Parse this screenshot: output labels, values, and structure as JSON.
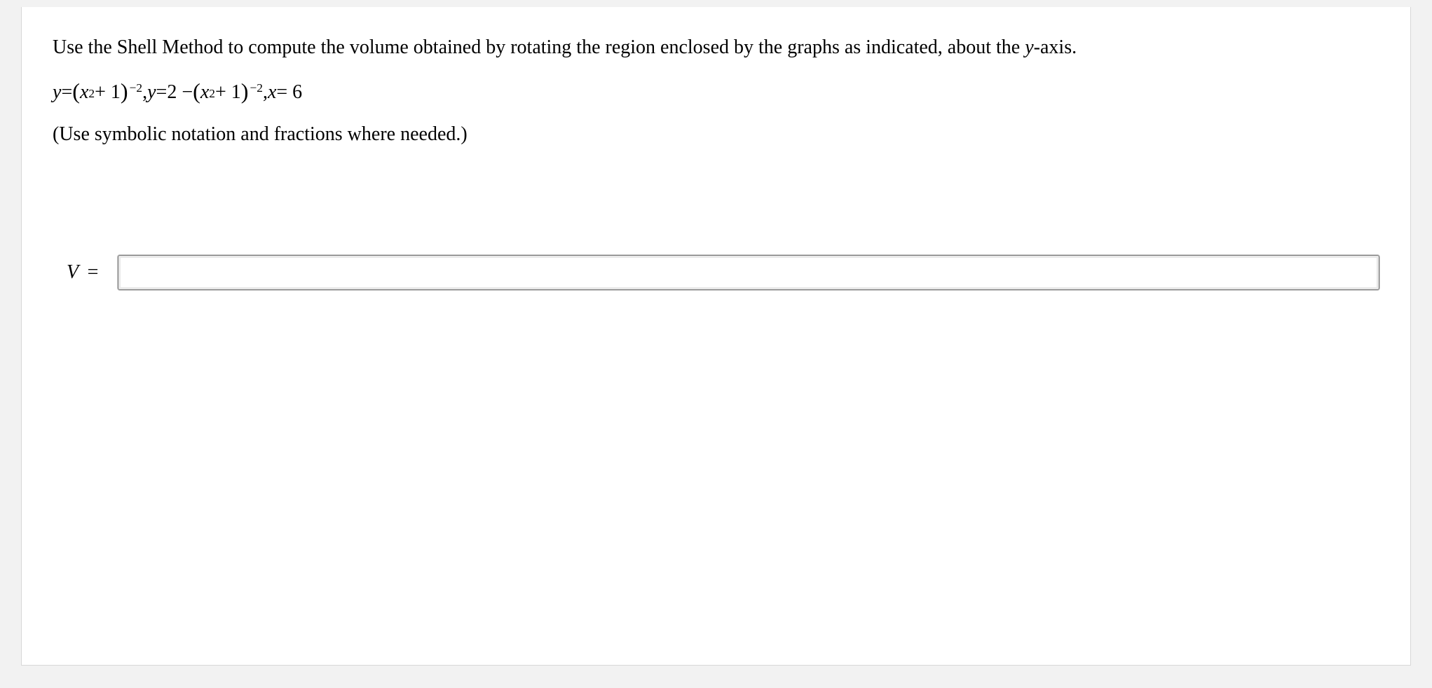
{
  "problem": {
    "text_part1": "Use the Shell Method to compute the volume obtained by rotating the region enclosed by the graphs as indicated, about the ",
    "text_ital_y": "y",
    "text_part2": "-axis.",
    "hint": "(Use symbolic notation and fractions where needed.)"
  },
  "equation": {
    "y": "y",
    "eq": " = ",
    "lparen": "(",
    "x": "x",
    "sq": "2",
    "plus1": " + 1",
    "rparen": ")",
    "neg2": "−2",
    "comma": ", ",
    "two_minus": "2 − ",
    "x_eq_6_x": "x",
    "x_eq_6_eq": " = 6"
  },
  "answer": {
    "label_V": "V",
    "label_eq": "=",
    "value": ""
  },
  "colors": {
    "page_bg": "#f2f2f2",
    "card_bg": "#ffffff",
    "card_border": "#d7d7d7",
    "text": "#000000",
    "input_border": "#777777",
    "input_inner_shadow": "#e8e8e8"
  }
}
